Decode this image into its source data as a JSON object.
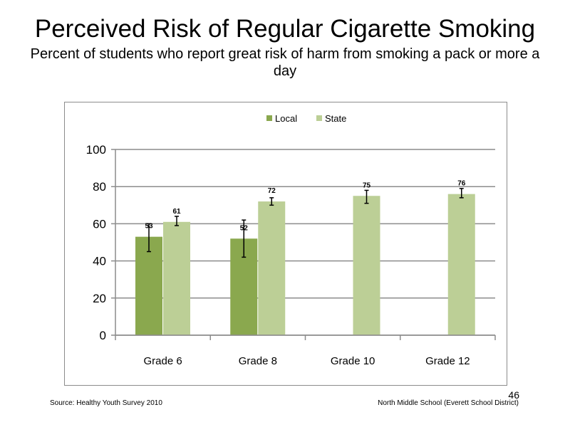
{
  "title": "Perceived  Risk of Regular  Cigarette  Smoking",
  "subtitle": "Percent  of students  who report great risk of harm  from smoking  a pack or more a day",
  "source": "Source: Healthy  Youth Survey 2010",
  "school": "North Middle  School  (Everett School District)",
  "page_number": "46",
  "colors": {
    "local": "#8aa84e",
    "state": "#bccf96",
    "grid": "#8c8c8c",
    "axis": "#8c8c8c"
  },
  "chart_data": {
    "type": "bar",
    "categories": [
      "Grade 6",
      "Grade 8",
      "Grade 10",
      "Grade 12"
    ],
    "series": [
      {
        "name": "Local",
        "values": [
          53,
          52,
          null,
          null
        ],
        "error_low": [
          45,
          42,
          null,
          null
        ],
        "error_high": [
          60,
          62,
          null,
          null
        ]
      },
      {
        "name": "State",
        "values": [
          61,
          72,
          75,
          76
        ],
        "error_low": [
          59,
          70,
          71,
          74
        ],
        "error_high": [
          64,
          74,
          78,
          79
        ]
      }
    ],
    "data_labels": [
      [
        "53",
        "52",
        "",
        ""
      ],
      [
        "61",
        "72",
        "75",
        "76"
      ]
    ],
    "yticks": [
      "0",
      "20",
      "40",
      "60",
      "80",
      "100"
    ],
    "ylim": [
      0,
      100
    ],
    "grid": true,
    "legend_position": "top"
  }
}
